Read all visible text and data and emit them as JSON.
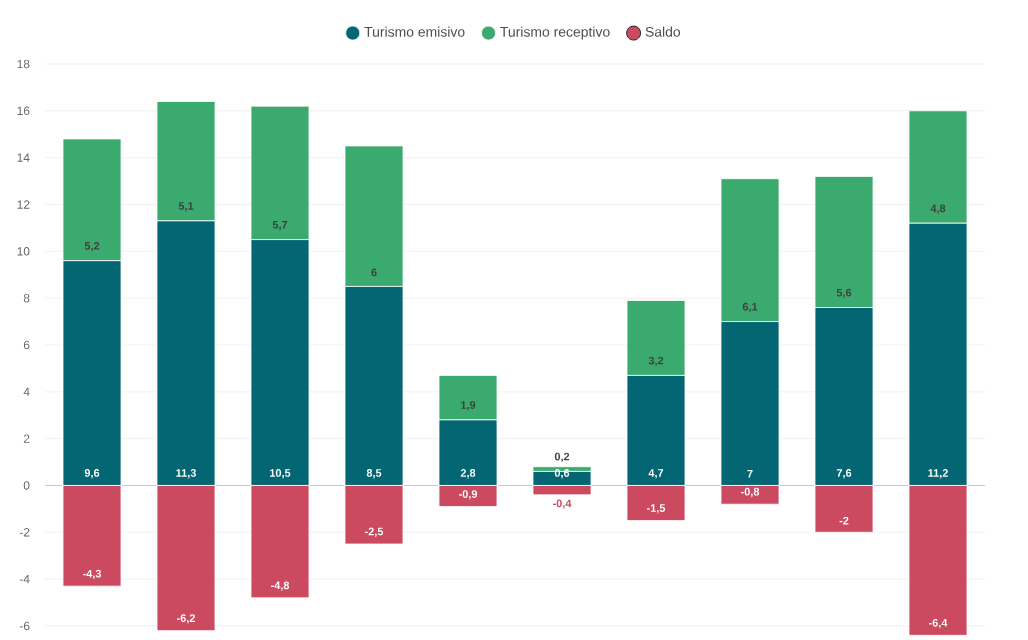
{
  "chart_data": {
    "type": "bar",
    "stacked": true,
    "categories": [
      null,
      null,
      null,
      null,
      null,
      null,
      null,
      null,
      null,
      null
    ],
    "series": [
      {
        "name": "Turismo emisivo",
        "color": "#046672",
        "values": [
          9.6,
          11.3,
          10.5,
          8.5,
          2.8,
          0.6,
          4.7,
          7,
          7.6,
          11.2
        ],
        "value_labels": [
          "9,6",
          "11,3",
          "10,5",
          "8,5",
          "2,8",
          "0,6",
          "4,7",
          "7",
          "7,6",
          "11,2"
        ]
      },
      {
        "name": "Turismo receptivo",
        "color": "#3aaa6e",
        "values": [
          5.2,
          5.1,
          5.7,
          6,
          1.9,
          0.2,
          3.2,
          6.1,
          5.6,
          4.8
        ],
        "value_labels": [
          "5,2",
          "5,1",
          "5,7",
          "6",
          "1,9",
          "0,2",
          "3,2",
          "6,1",
          "5,6",
          "4,8"
        ]
      },
      {
        "name": "Saldo",
        "color": "#cc4a60",
        "values": [
          -4.3,
          -6.2,
          -4.8,
          -2.5,
          -0.9,
          -0.4,
          -1.5,
          -0.8,
          -2,
          -6.4
        ],
        "value_labels": [
          "-4,3",
          "-6,2",
          "-4,8",
          "-2,5",
          "-0,9",
          "-0,4",
          "-1,5",
          "-0,8",
          "-2",
          "-6,4"
        ]
      }
    ],
    "ylim": [
      -6.6,
      18
    ],
    "yticks": [
      -6,
      -4,
      -2,
      0,
      2,
      4,
      6,
      8,
      10,
      12,
      14,
      16,
      18
    ],
    "grid": "y",
    "legend": "top"
  }
}
